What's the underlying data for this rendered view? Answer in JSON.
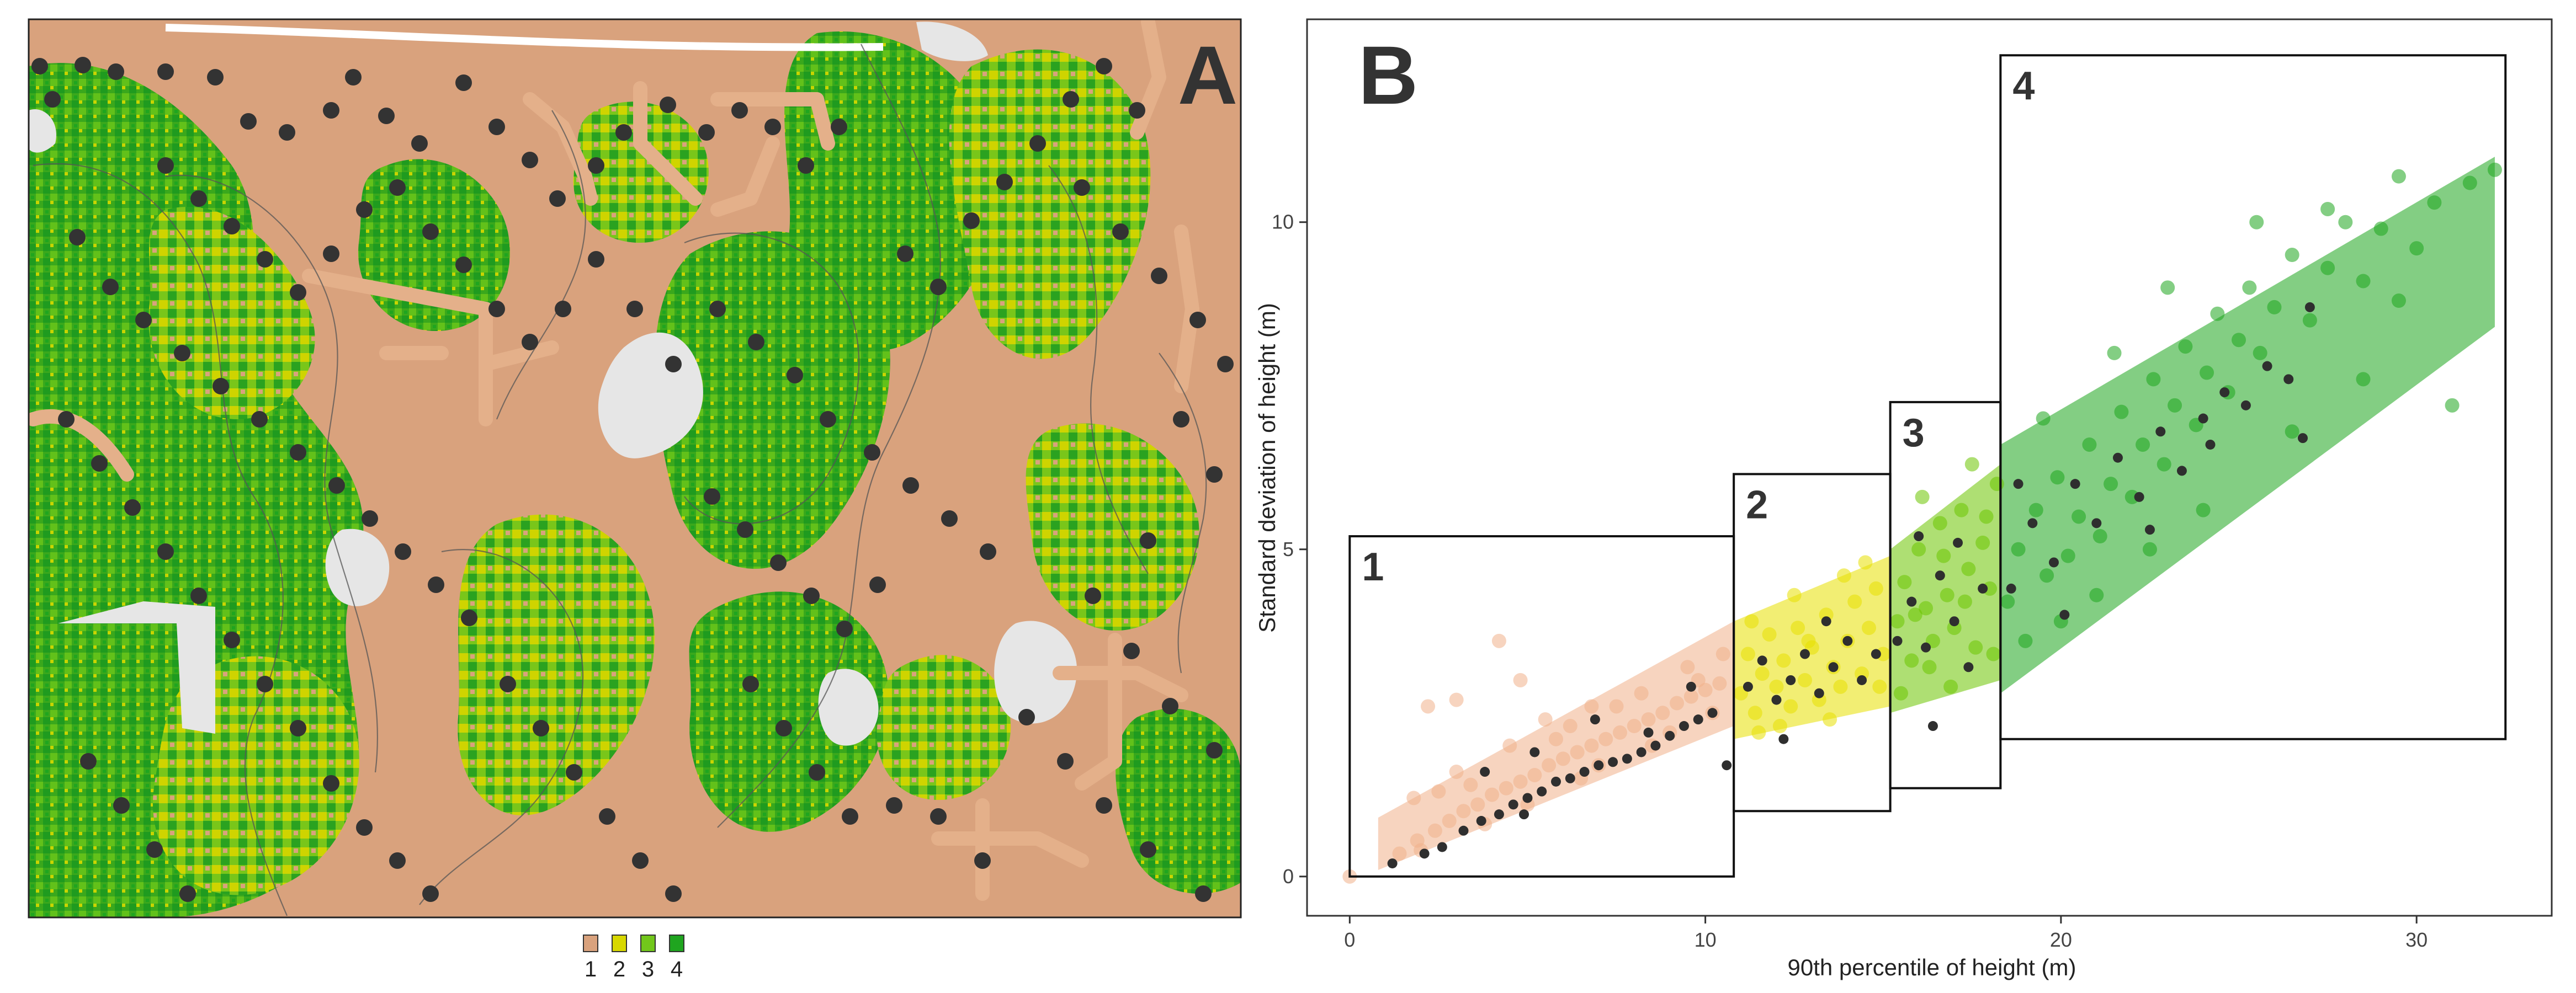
{
  "panel_a": {
    "label": "A",
    "legend": {
      "entries": [
        {
          "label": "1",
          "color": "#d9a27d"
        },
        {
          "label": "2",
          "color": "#d8d800"
        },
        {
          "label": "3",
          "color": "#72c71b"
        },
        {
          "label": "4",
          "color": "#1fa51f"
        }
      ]
    },
    "colors": {
      "class_1": "#d9a27d",
      "class_2": "#d8d800",
      "class_3": "#72c71b",
      "class_4": "#1fa51f",
      "no_data": "#e6e6e6",
      "sample_point": "#333333"
    }
  },
  "panel_b": {
    "label": "B",
    "colors": {
      "class_1": "#f0b08a",
      "class_2": "#e8e000",
      "class_3": "#6cc400",
      "class_4": "#1ea51e",
      "sample_point": "#2f2f2f"
    }
  },
  "chart_data": {
    "type": "scatter",
    "title": "",
    "xlabel": "90th percentile of height (m)",
    "ylabel": "Standard deviation of height (m)",
    "xlim": [
      -1.2,
      33.8
    ],
    "ylim": [
      -0.6,
      13.1
    ],
    "x_ticks": [
      0,
      10,
      20,
      30
    ],
    "x_tick_labels": [
      "0",
      "10",
      "20",
      "30"
    ],
    "y_ticks": [
      0,
      5,
      10
    ],
    "y_tick_labels": [
      "0",
      "5",
      "10"
    ],
    "grid": false,
    "boxes": [
      {
        "label": "1",
        "x": [
          0,
          10.8
        ],
        "y": [
          0,
          5.2
        ]
      },
      {
        "label": "2",
        "x": [
          10.8,
          15.2
        ],
        "y": [
          1.0,
          6.15
        ]
      },
      {
        "label": "3",
        "x": [
          15.2,
          18.3
        ],
        "y": [
          1.35,
          7.25
        ]
      },
      {
        "label": "4",
        "x": [
          18.3,
          32.5
        ],
        "y": [
          2.1,
          12.55
        ]
      }
    ],
    "series": [
      {
        "class": "1",
        "description_points": "pixel cloud, class 1",
        "points": [
          [
            0.0,
            0.0
          ],
          [
            1.4,
            0.35
          ],
          [
            1.9,
            0.55
          ],
          [
            2.4,
            0.7
          ],
          [
            2.8,
            0.85
          ],
          [
            3.2,
            1.0
          ],
          [
            3.6,
            1.1
          ],
          [
            4.0,
            1.25
          ],
          [
            4.4,
            1.35
          ],
          [
            4.8,
            1.45
          ],
          [
            5.2,
            1.55
          ],
          [
            5.6,
            1.7
          ],
          [
            6.0,
            1.8
          ],
          [
            6.4,
            1.9
          ],
          [
            6.8,
            2.0
          ],
          [
            7.2,
            2.1
          ],
          [
            7.6,
            2.2
          ],
          [
            8.0,
            2.3
          ],
          [
            8.4,
            2.4
          ],
          [
            8.8,
            2.5
          ],
          [
            9.2,
            2.65
          ],
          [
            9.6,
            2.75
          ],
          [
            10.0,
            2.85
          ],
          [
            10.4,
            2.95
          ],
          [
            3.0,
            1.6
          ],
          [
            4.5,
            2.0
          ],
          [
            5.5,
            2.4
          ],
          [
            2.5,
            1.3
          ],
          [
            3.8,
            0.8
          ],
          [
            6.5,
            1.5
          ],
          [
            7.5,
            2.6
          ],
          [
            8.5,
            2.0
          ],
          [
            9.5,
            3.2
          ],
          [
            10.5,
            3.4
          ],
          [
            2.2,
            2.6
          ],
          [
            3.0,
            2.7
          ],
          [
            4.2,
            3.6
          ],
          [
            1.8,
            1.2
          ],
          [
            5.0,
            1.1
          ],
          [
            6.2,
            2.3
          ],
          [
            7.0,
            1.7
          ],
          [
            8.2,
            2.8
          ],
          [
            9.0,
            2.2
          ],
          [
            10.2,
            2.5
          ],
          [
            4.8,
            3.0
          ],
          [
            2.0,
            0.4
          ],
          [
            3.4,
            1.4
          ],
          [
            5.8,
            2.1
          ],
          [
            6.8,
            2.6
          ],
          [
            9.8,
            3.0
          ]
        ]
      },
      {
        "class": "2",
        "description_points": "pixel cloud, class 2",
        "points": [
          [
            11.0,
            2.8
          ],
          [
            11.2,
            3.4
          ],
          [
            11.4,
            2.5
          ],
          [
            11.6,
            3.1
          ],
          [
            11.8,
            3.7
          ],
          [
            12.0,
            2.9
          ],
          [
            12.2,
            3.3
          ],
          [
            12.4,
            2.6
          ],
          [
            12.6,
            3.8
          ],
          [
            12.8,
            3.0
          ],
          [
            13.0,
            3.5
          ],
          [
            13.2,
            2.7
          ],
          [
            13.4,
            4.0
          ],
          [
            13.6,
            3.2
          ],
          [
            13.8,
            2.9
          ],
          [
            14.0,
            3.6
          ],
          [
            14.2,
            4.2
          ],
          [
            14.4,
            3.1
          ],
          [
            14.6,
            3.8
          ],
          [
            14.8,
            4.4
          ],
          [
            15.0,
            3.4
          ],
          [
            11.5,
            2.2
          ],
          [
            12.5,
            4.3
          ],
          [
            13.5,
            2.4
          ],
          [
            14.5,
            4.8
          ],
          [
            11.3,
            3.9
          ],
          [
            12.1,
            2.3
          ],
          [
            13.9,
            4.6
          ],
          [
            14.9,
            2.9
          ],
          [
            12.9,
            3.6
          ]
        ]
      },
      {
        "class": "3",
        "description_points": "pixel cloud, class 3",
        "points": [
          [
            15.4,
            3.9
          ],
          [
            15.6,
            4.5
          ],
          [
            15.8,
            3.3
          ],
          [
            16.0,
            5.0
          ],
          [
            16.2,
            4.1
          ],
          [
            16.4,
            3.6
          ],
          [
            16.6,
            5.4
          ],
          [
            16.8,
            4.3
          ],
          [
            17.0,
            3.8
          ],
          [
            17.2,
            5.6
          ],
          [
            17.4,
            4.7
          ],
          [
            17.6,
            3.5
          ],
          [
            17.8,
            5.1
          ],
          [
            18.0,
            4.4
          ],
          [
            18.2,
            6.0
          ],
          [
            15.5,
            2.8
          ],
          [
            16.1,
            5.8
          ],
          [
            16.9,
            2.9
          ],
          [
            17.5,
            6.3
          ],
          [
            18.1,
            3.4
          ],
          [
            15.9,
            4.0
          ],
          [
            16.7,
            4.9
          ],
          [
            17.3,
            4.2
          ],
          [
            17.9,
            5.5
          ],
          [
            16.3,
            3.2
          ]
        ]
      },
      {
        "class": "4",
        "description_points": "pixel cloud, class 4",
        "points": [
          [
            18.5,
            4.2
          ],
          [
            18.8,
            5.0
          ],
          [
            19.0,
            3.6
          ],
          [
            19.3,
            5.6
          ],
          [
            19.6,
            4.6
          ],
          [
            19.9,
            6.1
          ],
          [
            20.2,
            4.9
          ],
          [
            20.5,
            5.5
          ],
          [
            20.8,
            6.6
          ],
          [
            21.1,
            5.2
          ],
          [
            21.4,
            6.0
          ],
          [
            21.7,
            7.1
          ],
          [
            22.0,
            5.8
          ],
          [
            22.3,
            6.6
          ],
          [
            22.6,
            7.6
          ],
          [
            22.9,
            6.3
          ],
          [
            23.2,
            7.2
          ],
          [
            23.5,
            8.1
          ],
          [
            23.8,
            6.9
          ],
          [
            24.1,
            7.7
          ],
          [
            24.4,
            8.6
          ],
          [
            24.7,
            7.4
          ],
          [
            25.0,
            8.2
          ],
          [
            25.3,
            9.0
          ],
          [
            25.6,
            8.0
          ],
          [
            26.0,
            8.7
          ],
          [
            26.5,
            9.5
          ],
          [
            27.0,
            8.5
          ],
          [
            27.5,
            9.3
          ],
          [
            28.0,
            10.0
          ],
          [
            28.5,
            9.1
          ],
          [
            29.0,
            9.9
          ],
          [
            29.5,
            10.7
          ],
          [
            30.0,
            9.6
          ],
          [
            30.5,
            10.3
          ],
          [
            31.0,
            7.2
          ],
          [
            31.5,
            10.6
          ],
          [
            32.2,
            10.8
          ],
          [
            20.0,
            3.9
          ],
          [
            21.0,
            4.3
          ],
          [
            22.5,
            5.0
          ],
          [
            24.0,
            5.6
          ],
          [
            19.5,
            7.0
          ],
          [
            21.5,
            8.0
          ],
          [
            23.0,
            9.0
          ],
          [
            25.5,
            10.0
          ],
          [
            27.5,
            10.2
          ],
          [
            29.5,
            8.8
          ],
          [
            26.5,
            6.8
          ],
          [
            28.5,
            7.6
          ]
        ]
      },
      {
        "class": "samples",
        "description_points": "field plot sample points",
        "points": [
          [
            1.2,
            0.2
          ],
          [
            2.1,
            0.35
          ],
          [
            2.6,
            0.45
          ],
          [
            3.2,
            0.7
          ],
          [
            3.7,
            0.85
          ],
          [
            4.2,
            0.95
          ],
          [
            4.6,
            1.1
          ],
          [
            5.0,
            1.2
          ],
          [
            5.4,
            1.3
          ],
          [
            5.8,
            1.45
          ],
          [
            6.2,
            1.5
          ],
          [
            6.6,
            1.6
          ],
          [
            7.0,
            1.7
          ],
          [
            7.4,
            1.75
          ],
          [
            7.8,
            1.8
          ],
          [
            8.2,
            1.9
          ],
          [
            8.6,
            2.0
          ],
          [
            9.0,
            2.15
          ],
          [
            9.4,
            2.3
          ],
          [
            9.8,
            2.4
          ],
          [
            10.2,
            2.5
          ],
          [
            3.8,
            1.6
          ],
          [
            5.2,
            1.9
          ],
          [
            6.9,
            2.4
          ],
          [
            8.4,
            2.2
          ],
          [
            9.6,
            2.9
          ],
          [
            10.6,
            1.7
          ],
          [
            4.9,
            0.95
          ],
          [
            11.2,
            2.9
          ],
          [
            11.6,
            3.3
          ],
          [
            12.0,
            2.7
          ],
          [
            12.4,
            3.0
          ],
          [
            12.8,
            3.4
          ],
          [
            13.2,
            2.8
          ],
          [
            13.6,
            3.2
          ],
          [
            14.0,
            3.6
          ],
          [
            14.4,
            3.0
          ],
          [
            14.8,
            3.4
          ],
          [
            12.2,
            2.1
          ],
          [
            13.4,
            3.9
          ],
          [
            15.4,
            3.6
          ],
          [
            15.8,
            4.2
          ],
          [
            16.2,
            3.5
          ],
          [
            16.6,
            4.6
          ],
          [
            17.0,
            3.9
          ],
          [
            17.4,
            3.2
          ],
          [
            17.8,
            4.4
          ],
          [
            16.4,
            2.3
          ],
          [
            17.1,
            5.1
          ],
          [
            16.0,
            5.2
          ],
          [
            18.6,
            4.4
          ],
          [
            19.2,
            5.4
          ],
          [
            19.8,
            4.8
          ],
          [
            20.4,
            6.0
          ],
          [
            21.0,
            5.4
          ],
          [
            21.6,
            6.4
          ],
          [
            22.2,
            5.8
          ],
          [
            22.8,
            6.8
          ],
          [
            23.4,
            6.2
          ],
          [
            24.0,
            7.0
          ],
          [
            24.6,
            7.4
          ],
          [
            25.2,
            7.2
          ],
          [
            25.8,
            7.8
          ],
          [
            26.4,
            7.6
          ],
          [
            27.0,
            8.7
          ],
          [
            20.1,
            4.0
          ],
          [
            22.5,
            5.3
          ],
          [
            24.2,
            6.6
          ],
          [
            26.8,
            6.7
          ],
          [
            18.8,
            6.0
          ]
        ]
      }
    ]
  }
}
